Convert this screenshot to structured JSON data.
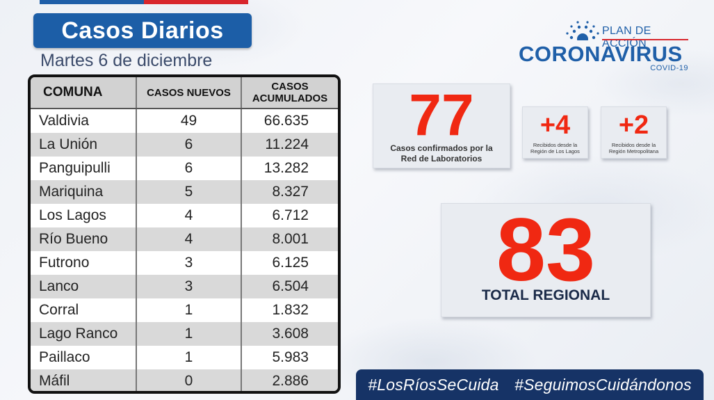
{
  "header": {
    "title": "Casos Diarios",
    "date": "Martes 6 de diciembre"
  },
  "logo": {
    "plan": "PLAN DE ACCIÓN",
    "main": "CORONAVIRUS",
    "sub": "COVID-19"
  },
  "table": {
    "headers": {
      "comuna": "COMUNA",
      "nuevos": "CASOS NUEVOS",
      "acum_line1": "CASOS",
      "acum_line2": "ACUMULADOS"
    },
    "rows": [
      {
        "comuna": "Valdivia",
        "nuevos": "49",
        "acumulados": "66.635"
      },
      {
        "comuna": "La Unión",
        "nuevos": "6",
        "acumulados": "11.224"
      },
      {
        "comuna": "Panguipulli",
        "nuevos": "6",
        "acumulados": "13.282"
      },
      {
        "comuna": "Mariquina",
        "nuevos": "5",
        "acumulados": "8.327"
      },
      {
        "comuna": "Los Lagos",
        "nuevos": "4",
        "acumulados": "6.712"
      },
      {
        "comuna": "Río Bueno",
        "nuevos": "4",
        "acumulados": "8.001"
      },
      {
        "comuna": "Futrono",
        "nuevos": "3",
        "acumulados": "6.125"
      },
      {
        "comuna": "Lanco",
        "nuevos": "3",
        "acumulados": "6.504"
      },
      {
        "comuna": "Corral",
        "nuevos": "1",
        "acumulados": "1.832"
      },
      {
        "comuna": "Lago Ranco",
        "nuevos": "1",
        "acumulados": "3.608"
      },
      {
        "comuna": "Paillaco",
        "nuevos": "1",
        "acumulados": "5.983"
      },
      {
        "comuna": "Máfil",
        "nuevos": "0",
        "acumulados": "2.886"
      }
    ]
  },
  "cards": {
    "confirmed": {
      "value": "77",
      "label_line1": "Casos confirmados por la",
      "label_line2": "Red de Laboratorios"
    },
    "los_lagos": {
      "value": "+4",
      "label_line1": "Recibidos desde la",
      "label_line2": "Región de Los Lagos"
    },
    "metropolitana": {
      "value": "+2",
      "label_line1": "Recibidos desde la",
      "label_line2": "Región Metropolitana"
    },
    "total": {
      "value": "83",
      "label": "TOTAL REGIONAL"
    }
  },
  "hashtags": [
    "#LosRíosSeCuida",
    "#SeguimosCuidándonos"
  ],
  "colors": {
    "brand_blue": "#1c5ea7",
    "accent_red": "#f02812",
    "hashtag_bg": "#163366"
  }
}
